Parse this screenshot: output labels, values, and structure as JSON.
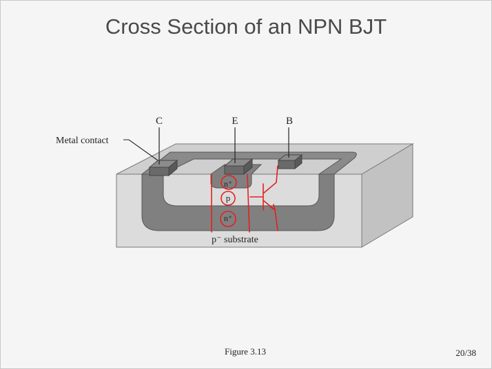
{
  "slide": {
    "title": "Cross Section of an NPN BJT",
    "caption": "Figure 3.13",
    "page": "20/38"
  },
  "diagram": {
    "terminals": {
      "collector": "C",
      "emitter": "E",
      "base": "B"
    },
    "metal_contact_label": "Metal contact",
    "regions": {
      "emitter": "n⁺",
      "base": "p",
      "collector": "n⁺"
    },
    "substrate_label": "p⁻ substrate"
  },
  "colors": {
    "wafer_face": "#dcdcdc",
    "wafer_top": "#cfcfcf",
    "wafer_side": "#c2c2c2",
    "n_region": "#808080",
    "contact": "#6a6a6a",
    "annotation": "#e32020"
  }
}
